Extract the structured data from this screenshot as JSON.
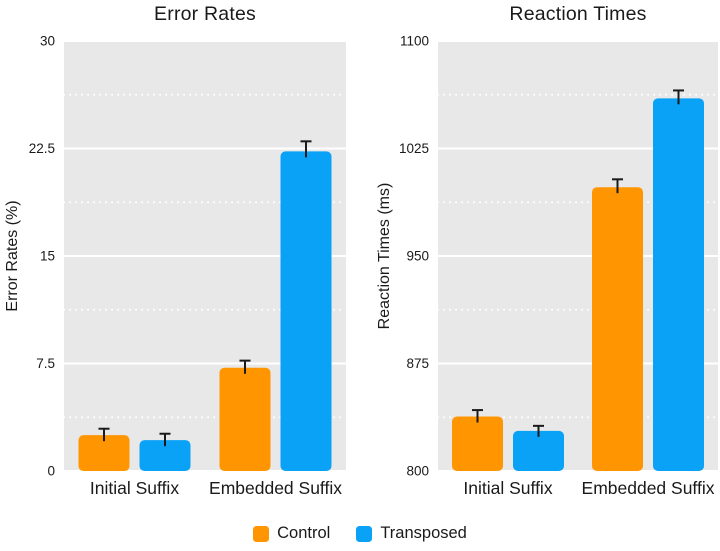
{
  "colors": {
    "panel_background": "#E8E8E8",
    "gridline": "#FFFFFF",
    "text": "#1A1A1A",
    "error_bar": "#1A1A1A",
    "control": "#FF9500",
    "transposed": "#0AA2F6"
  },
  "legend": {
    "items": [
      {
        "label": "Control",
        "color": "#FF9500"
      },
      {
        "label": "Transposed",
        "color": "#0AA2F6"
      }
    ]
  },
  "chart_data": [
    {
      "type": "bar",
      "title": "Error Rates",
      "ylabel": "Error Rates (%)",
      "xlabel": "",
      "categories": [
        "Initial Suffix",
        "Embedded Suffix"
      ],
      "series": [
        {
          "name": "Control",
          "color": "#FF9500",
          "values": [
            2.5,
            7.2
          ],
          "errors": [
            0.45,
            0.5
          ]
        },
        {
          "name": "Transposed",
          "color": "#0AA2F6",
          "values": [
            2.15,
            22.3
          ],
          "errors": [
            0.45,
            0.7
          ]
        }
      ],
      "ylim": [
        0,
        30
      ],
      "yticks": [
        0,
        7.5,
        15,
        22.5,
        30
      ],
      "grid": "major solid white, minor dotted white",
      "legend_position": "bottom"
    },
    {
      "type": "bar",
      "title": "Reaction Times",
      "ylabel": "Reaction Times (ms)",
      "xlabel": "",
      "categories": [
        "Initial Suffix",
        "Embedded Suffix"
      ],
      "series": [
        {
          "name": "Control",
          "color": "#FF9500",
          "values": [
            838,
            998
          ],
          "errors": [
            4.5,
            5.5
          ]
        },
        {
          "name": "Transposed",
          "color": "#0AA2F6",
          "values": [
            828,
            1060
          ],
          "errors": [
            3.5,
            5.5
          ]
        }
      ],
      "ylim": [
        800,
        1100
      ],
      "yticks": [
        800,
        875,
        950,
        1025,
        1100
      ],
      "grid": "major solid white, minor dotted white",
      "legend_position": "bottom"
    }
  ]
}
